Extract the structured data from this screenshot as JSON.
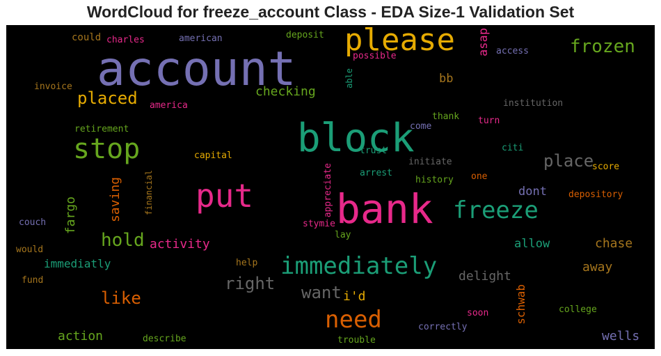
{
  "title": "WordCloud for freeze_account Class - EDA Size-1 Validation Set",
  "palette": {
    "background": "#000000",
    "purple": "#7570b3",
    "teal": "#1b9e77",
    "orange": "#d95f02",
    "magenta": "#e7298a",
    "green": "#66a61e",
    "gold": "#e6ab02",
    "brown": "#a6761d",
    "gray": "#666666"
  },
  "words": {
    "account": "account",
    "please": "please",
    "frozen": "frozen",
    "block": "block",
    "stop": "stop",
    "put": "put",
    "bank": "bank",
    "freeze": "freeze",
    "immediately": "immediately",
    "need": "need",
    "placed": "placed",
    "checking": "checking",
    "hold": "hold",
    "activity": "activity",
    "place": "place",
    "right": "right",
    "want": "want",
    "like": "like",
    "immediatly": "immediatly",
    "action": "action",
    "wells": "wells",
    "chase": "chase",
    "allow": "allow",
    "away": "away",
    "delight": "delight",
    "dont": "dont",
    "id": "i'd",
    "schwab": "schwab",
    "fargo": "fargo",
    "saving": "saving",
    "bb": "bb",
    "asap": "asap",
    "could": "could",
    "charles": "charles",
    "american": "american",
    "deposit": "deposit",
    "possible": "possible",
    "access": "access",
    "invoice": "invoice",
    "able": "able",
    "america": "america",
    "institution": "institution",
    "thank": "thank",
    "come": "come",
    "turn": "turn",
    "retirement": "retirement",
    "trust": "trust",
    "citi": "citi",
    "capital": "capital",
    "initiate": "initiate",
    "score": "score",
    "financial": "financial",
    "appreciate": "appreciate",
    "arrest": "arrest",
    "history": "history",
    "one": "one",
    "depository": "depository",
    "couch": "couch",
    "stymie": "stymie",
    "lay": "lay",
    "would": "would",
    "help": "help",
    "fund": "fund",
    "soon": "soon",
    "college": "college",
    "correctly": "correctly",
    "describe": "describe",
    "trouble": "trouble"
  }
}
